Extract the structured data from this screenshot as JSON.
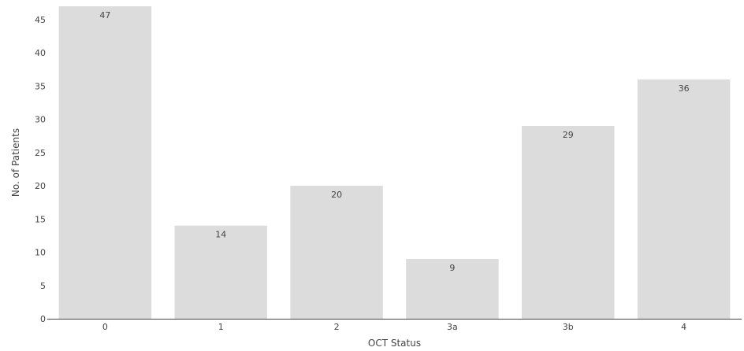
{
  "chart_data": {
    "type": "bar",
    "title": "",
    "xlabel": "OCT Status",
    "ylabel": "No. of Patients",
    "categories": [
      "0",
      "1",
      "2",
      "3a",
      "3b",
      "4"
    ],
    "values": [
      47,
      14,
      20,
      9,
      29,
      36
    ],
    "ylim": [
      0,
      47
    ],
    "yticks": [
      0,
      5,
      10,
      15,
      20,
      25,
      30,
      35,
      40,
      45
    ],
    "grid": false,
    "legend": "none",
    "data_labels": "inside-top",
    "colors": {
      "bar": "#dcdcdc",
      "axis": "#444444",
      "text": "#444444"
    }
  }
}
